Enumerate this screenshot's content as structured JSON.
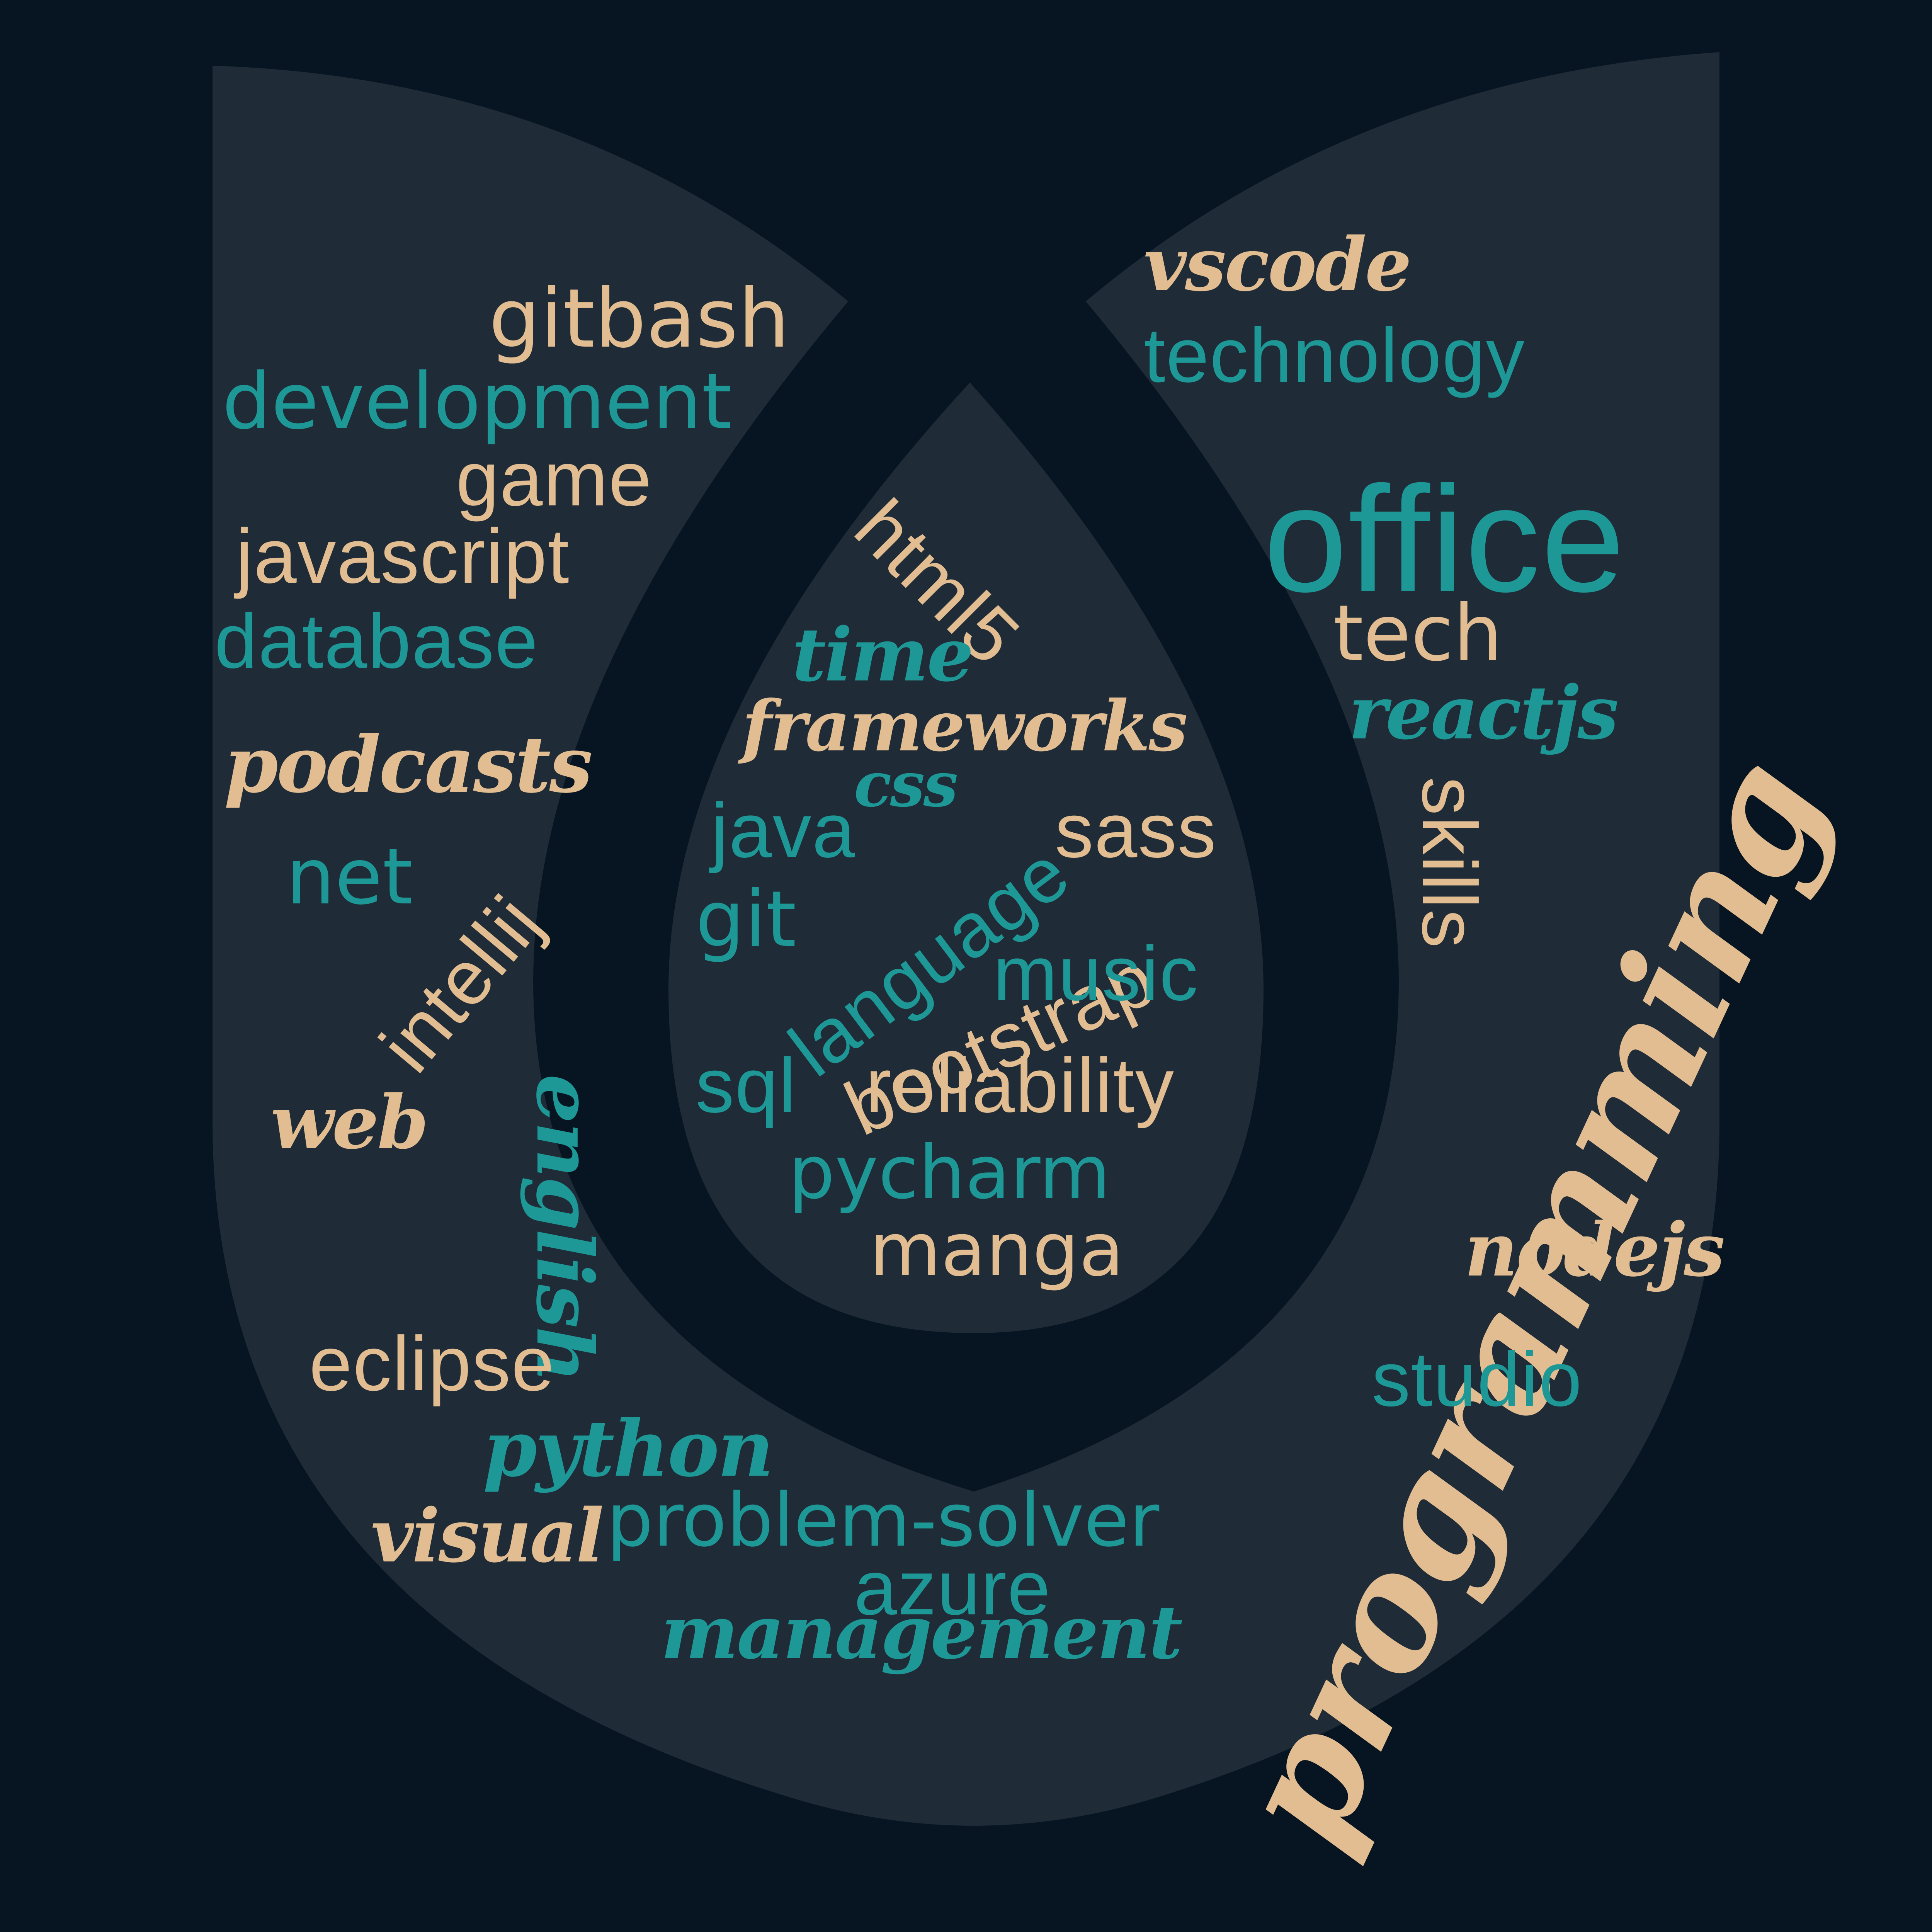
{
  "colors": {
    "background": "#071522",
    "shape": "#1f2c37",
    "tan": "#e2bd91",
    "teal": "#1e9896"
  },
  "words": {
    "gitbash": "gitbash",
    "development": "development",
    "game": "game",
    "javascript": "javascript",
    "database": "database",
    "podcasts": "podcasts",
    "net": "net",
    "intellij": "intellij",
    "web": "web",
    "english": "english",
    "eclipse": "eclipse",
    "python": "python",
    "visual": "visual",
    "problem_solver": "problem-solver",
    "azure": "azure",
    "management": "management",
    "vscode": "vscode",
    "technology": "technology",
    "office": "office",
    "tech": "tech",
    "reactjs": "reactjs",
    "skills": "skills",
    "programming": "programming",
    "nodejs": "nodejs",
    "studio": "studio",
    "html5": "html5",
    "time": "time",
    "frameworks": "frameworks",
    "css": "css",
    "java": "java",
    "sass": "sass",
    "git": "git",
    "language": "language",
    "bootstrap": "bootstrap",
    "music": "music",
    "sql": "sql",
    "reliability": "reliability",
    "pycharm": "pycharm",
    "manga": "manga"
  }
}
